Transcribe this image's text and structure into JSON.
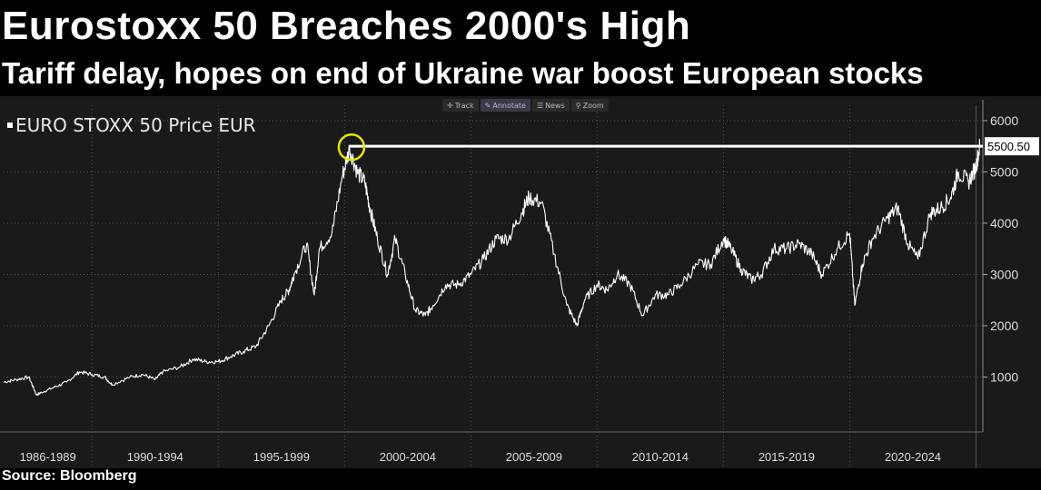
{
  "header": {
    "title": "Eurostoxx 50 Breaches 2000's High",
    "subtitle": "Tariff delay, hopes on end of Ukraine war boost European stocks"
  },
  "toolbar": {
    "items": [
      {
        "label": "Track",
        "icon": "crosshair-icon"
      },
      {
        "label": "Annotate",
        "icon": "pencil-icon"
      },
      {
        "label": "News",
        "icon": "news-icon"
      },
      {
        "label": "Zoom",
        "icon": "magnifier-icon"
      }
    ]
  },
  "footer": {
    "source": "Source: Bloomberg"
  },
  "colors": {
    "background": "#000000",
    "plot_bg": "#1a1a1a",
    "line": "#ffffff",
    "highlight_circle": "#e6e600",
    "grid": "#555555"
  },
  "chart_data": {
    "type": "line",
    "title": "Eurostoxx 50 Breaches 2000's High",
    "subtitle": "Tariff delay, hopes on end of Ukraine war boost European stocks",
    "legend": "EURO STOXX 50 Price EUR",
    "legend_position": "top-left",
    "xlabel": "",
    "ylabel": "",
    "y_axis_side": "right",
    "ylim": [
      0,
      6300
    ],
    "xlim": [
      1986.5,
      2025.2
    ],
    "yticks": [
      1000,
      2000,
      3000,
      4000,
      5000,
      6000
    ],
    "xtick_labels": [
      "1986-1989",
      "1990-1994",
      "1995-1999",
      "2000-2004",
      "2005-2009",
      "2010-2014",
      "2015-2019",
      "2020-2024"
    ],
    "xtick_bounds": [
      1986.5,
      1990,
      1995,
      2000,
      2005,
      2010,
      2015,
      2020,
      2025
    ],
    "grid": true,
    "last_value_label": "5500.50",
    "reference_line": 5500.5,
    "highlight_point": {
      "x": 2000.2,
      "y": 5464
    },
    "series": [
      {
        "x": [
          1986.5,
          1987.0,
          1987.5,
          1987.8,
          1988.0,
          1988.5,
          1989.0,
          1989.5,
          1990.0,
          1990.5,
          1990.8,
          1991.5,
          1992.0,
          1992.5,
          1992.8,
          1993.5,
          1994.0,
          1994.5,
          1995.0,
          1995.5,
          1996.0,
          1996.5,
          1997.0,
          1997.5,
          1997.8,
          1998.0,
          1998.5,
          1998.8,
          1999.0,
          1999.5,
          1999.9,
          2000.2,
          2000.5,
          2000.8,
          2001.0,
          2001.3,
          2001.7,
          2002.0,
          2002.4,
          2002.8,
          2003.2,
          2003.5,
          2004.0,
          2004.5,
          2005.0,
          2005.5,
          2006.0,
          2006.5,
          2007.0,
          2007.3,
          2007.8,
          2008.3,
          2008.8,
          2009.2,
          2009.5,
          2010.0,
          2010.4,
          2010.8,
          2011.3,
          2011.8,
          2012.3,
          2012.8,
          2013.3,
          2014.0,
          2014.5,
          2015.0,
          2015.3,
          2015.7,
          2016.1,
          2016.5,
          2017.0,
          2017.5,
          2018.0,
          2018.5,
          2018.9,
          2019.5,
          2020.0,
          2020.2,
          2020.5,
          2020.9,
          2021.5,
          2021.9,
          2022.3,
          2022.7,
          2023.2,
          2023.6,
          2024.0,
          2024.3,
          2024.7,
          2025.0,
          2025.15
        ],
        "y": [
          900,
          950,
          1000,
          650,
          700,
          800,
          900,
          1100,
          1050,
          1000,
          850,
          1000,
          1050,
          950,
          1100,
          1200,
          1350,
          1300,
          1300,
          1400,
          1500,
          1600,
          2000,
          2500,
          2700,
          3000,
          3600,
          2600,
          3500,
          3800,
          4900,
          5464,
          5000,
          4800,
          4300,
          3700,
          3000,
          3700,
          3000,
          2300,
          2200,
          2400,
          2800,
          2800,
          3000,
          3300,
          3700,
          3700,
          4200,
          4500,
          4400,
          3400,
          2400,
          2000,
          2500,
          2800,
          2700,
          3000,
          2800,
          2200,
          2600,
          2600,
          2800,
          3200,
          3200,
          3700,
          3500,
          3100,
          2900,
          3000,
          3500,
          3500,
          3600,
          3400,
          3000,
          3500,
          3800,
          2400,
          3200,
          3700,
          4100,
          4300,
          3600,
          3300,
          4200,
          4300,
          4500,
          5000,
          4800,
          5100,
          5500.5
        ]
      }
    ]
  }
}
